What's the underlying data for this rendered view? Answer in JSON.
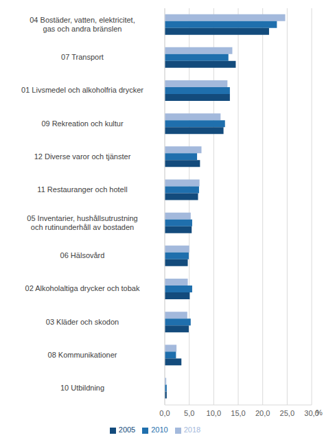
{
  "chart_data": {
    "type": "bar",
    "orientation": "horizontal",
    "x_label": "%",
    "categories": [
      "04 Bostäder, vatten, elektricitet, gas och andra bränslen",
      "07 Transport",
      "01 Livsmedel och alkoholfria drycker",
      "09 Rekreation och kultur",
      "12 Diverse varor och tjänster",
      "11 Restauranger och hotell",
      "05 Inventarier, hushållsutrustning och rutinunderhåll av bostaden",
      "06 Hälsovård",
      "02 Alkoholaltiga drycker och tobak",
      "03 Kläder och skodon",
      "08 Kommunikationer",
      "10 Utbildning"
    ],
    "series": [
      {
        "name": "2018",
        "color": "#a3b9dc",
        "values": [
          24.6,
          13.8,
          12.8,
          11.4,
          7.5,
          7.1,
          5.3,
          5.0,
          4.7,
          4.6,
          2.4,
          0.3
        ]
      },
      {
        "name": "2010",
        "color": "#1f6fad",
        "values": [
          22.9,
          13.0,
          13.3,
          12.3,
          6.6,
          7.0,
          5.6,
          4.9,
          5.6,
          5.3,
          2.3,
          0.4
        ]
      },
      {
        "name": "2005",
        "color": "#134b7c",
        "values": [
          21.3,
          14.5,
          13.3,
          12.0,
          7.2,
          6.8,
          5.5,
          4.7,
          5.1,
          4.9,
          3.4,
          0.4
        ]
      }
    ],
    "xlim": [
      0,
      30
    ],
    "xticks": [
      {
        "value": 0,
        "label": "0,0"
      },
      {
        "value": 5,
        "label": "5,0"
      },
      {
        "value": 10,
        "label": "10,0"
      },
      {
        "value": 15,
        "label": "15,0"
      },
      {
        "value": 20,
        "label": "20,0"
      },
      {
        "value": 25,
        "label": "25,0"
      },
      {
        "value": 30,
        "label": "30,0"
      }
    ],
    "grid": true,
    "legend": "bottom"
  }
}
